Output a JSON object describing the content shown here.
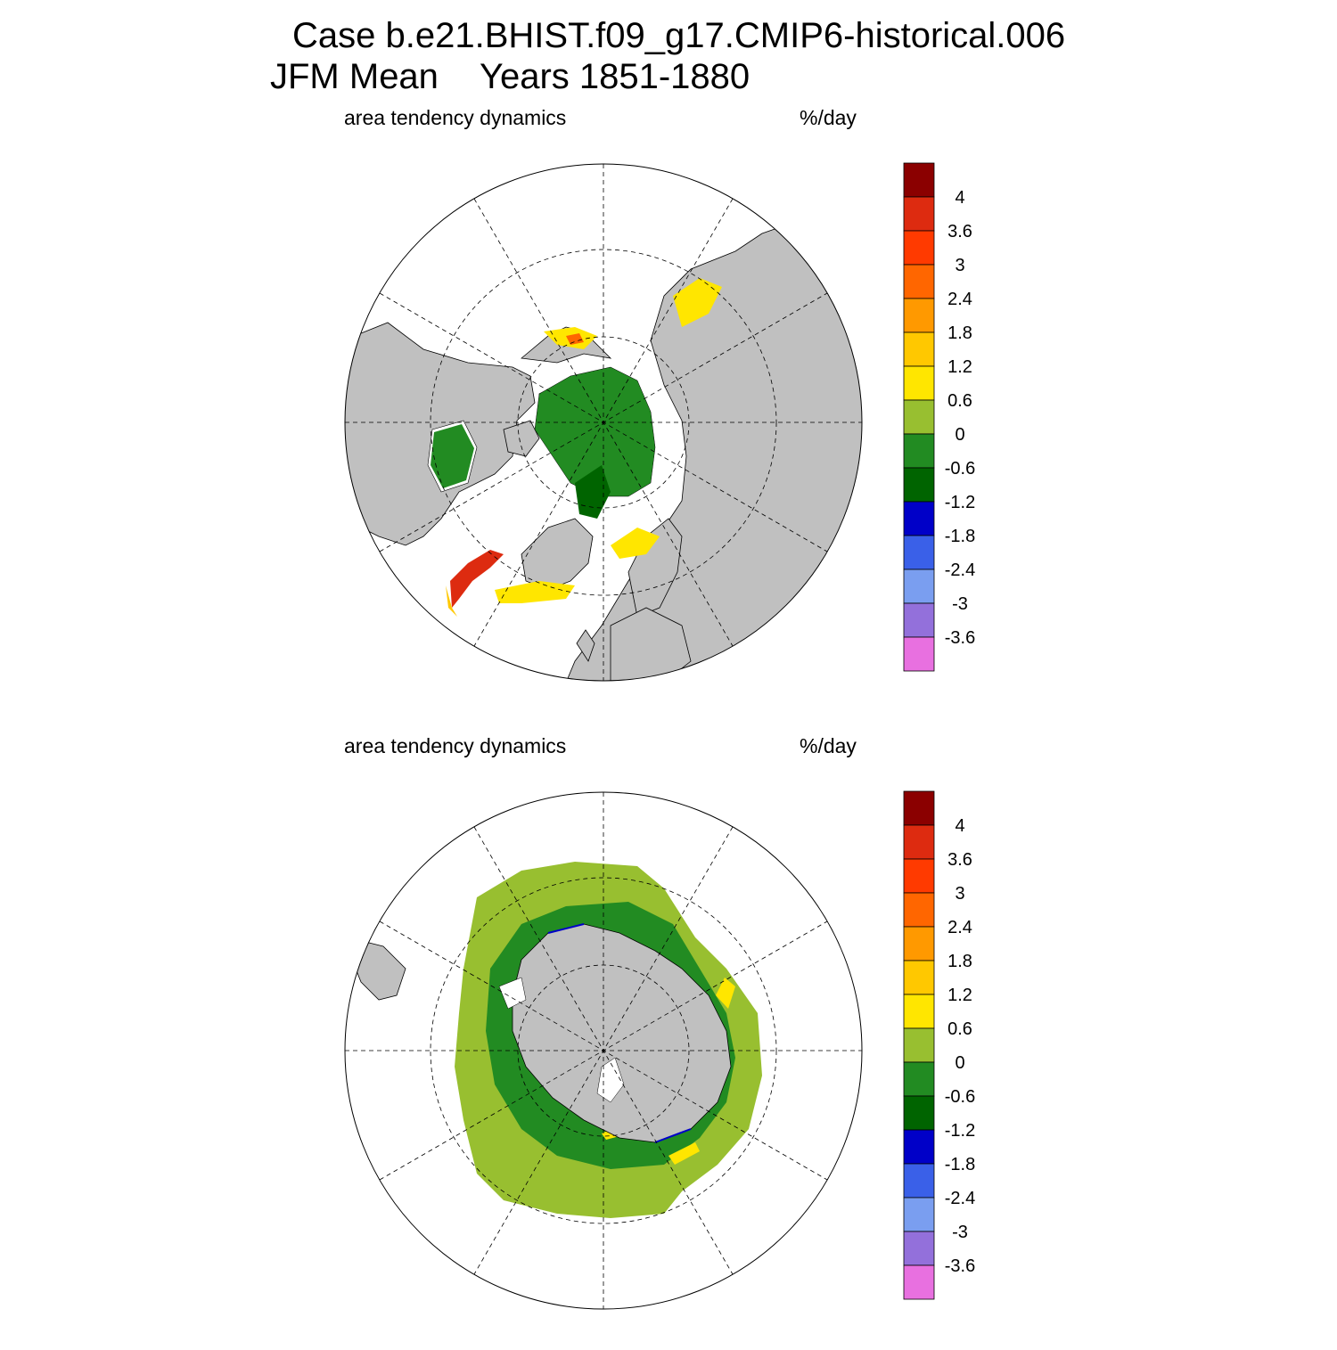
{
  "title": {
    "case_line": "Case b.e21.BHIST.f09_g17.CMIP6-historical.006",
    "season": "JFM Mean",
    "years": "Years 1851-1880"
  },
  "panels": [
    {
      "id": "north",
      "hemisphere": "north",
      "left_label": "area tendency dynamics",
      "units": "%/day"
    },
    {
      "id": "south",
      "hemisphere": "south",
      "left_label": "area tendency dynamics",
      "units": "%/day"
    }
  ],
  "colorbar": {
    "tick_labels": [
      "4",
      "3.6",
      "3",
      "2.4",
      "1.8",
      "1.2",
      "0.6",
      "0",
      "-0.6",
      "-1.2",
      "-1.8",
      "-2.4",
      "-3",
      "-3.6"
    ],
    "colors_top_to_bottom": [
      "#8b0000",
      "#dd2b10",
      "#ff3a00",
      "#ff6600",
      "#ff9900",
      "#ffc800",
      "#ffe600",
      "#98bf30",
      "#228b22",
      "#006400",
      "#0000c8",
      "#3a60e8",
      "#7a9ef0",
      "#9370db",
      "#e870e0"
    ]
  },
  "colors": {
    "land": "#c0c0c0",
    "ocean": "#ffffff",
    "grid": "#000000"
  }
}
